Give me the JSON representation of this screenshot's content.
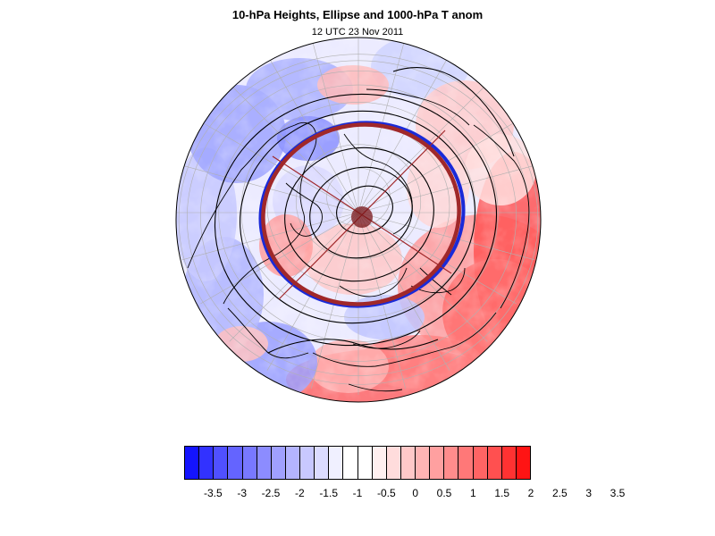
{
  "title": "10-hPa Heights, Ellipse and 1000-hPa T anom",
  "subtitle": "12 UTC 23 Nov 2011",
  "map": {
    "projection": "orthographic-polar-north",
    "layers": [
      "temperature-anomaly-shading",
      "10-hPa-height-contours",
      "vortex-ellipse",
      "coastlines",
      "lat-lon-grid"
    ],
    "ellipse_color": "#a0282a",
    "ellipse_edge_color": "#1a2ad8",
    "contour_color": "#000000",
    "coastline_color": "#000000",
    "grid_color": "#b0b0b0"
  },
  "colorbar": {
    "colors": [
      "#1414ff",
      "#3232ff",
      "#5050ff",
      "#6464ff",
      "#7878ff",
      "#8c8cff",
      "#a0a0ff",
      "#b4b4ff",
      "#c8c8ff",
      "#dcdcff",
      "#f0f0ff",
      "#ffffff",
      "#ffffff",
      "#fff0f0",
      "#ffdcdc",
      "#ffc8c8",
      "#ffb4b4",
      "#ffa0a0",
      "#ff8c8c",
      "#ff7878",
      "#ff6464",
      "#ff5050",
      "#ff3232",
      "#ff1414"
    ],
    "labels": [
      "-3.5",
      "-3",
      "-2.5",
      "-2",
      "-1.5",
      "-1",
      "-0.5",
      "0",
      "0.5",
      "1",
      "1.5",
      "2",
      "2.5",
      "3",
      "3.5"
    ]
  }
}
